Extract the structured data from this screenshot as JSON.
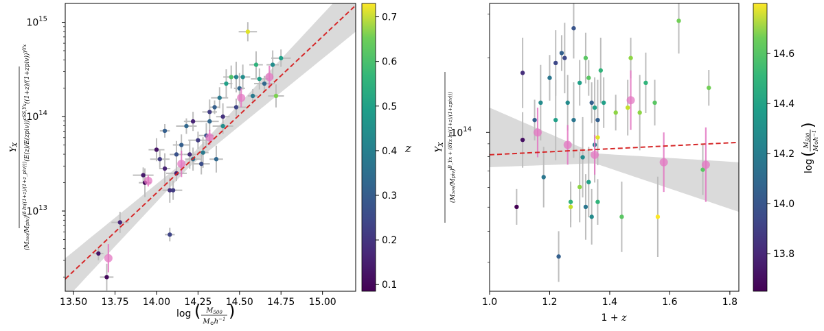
{
  "chart_data": [
    {
      "type": "scatter",
      "title": "",
      "xlabel": "log(M500 / M⊙h⁻¹)",
      "ylabel": "Y_X / [(M500/Mpiv)^(δYx ln((1+z)/(1+zpiv))) (E(z)/E(zpiv))^(cSS,Yx) ((1+z)/(1+zpiv))^(γYx)]",
      "xlim": [
        13.45,
        15.2
      ],
      "ylim_log10": [
        12.15,
        15.2
      ],
      "x_ticks": [
        "13.50",
        "13.75",
        "14.00",
        "14.25",
        "14.50",
        "14.75",
        "15.00"
      ],
      "y_ticks": [
        "10^13",
        "10^14",
        "10^15"
      ],
      "colorbar": {
        "label": "z",
        "range": [
          0.085,
          0.73
        ],
        "ticks": [
          "0.1",
          "0.2",
          "0.3",
          "0.4",
          "0.5",
          "0.6",
          "0.7"
        ]
      },
      "fit_line": {
        "x": [
          13.45,
          15.2
        ],
        "log10y": [
          12.28,
          15.18
        ]
      },
      "band_halfwidth_log10": {
        "x": [
          13.45,
          14.2,
          15.2
        ],
        "halfwidth": [
          0.22,
          0.05,
          0.28
        ]
      },
      "binned_points": [
        {
          "x": 13.71,
          "log10y": 12.5,
          "err": 0.15
        },
        {
          "x": 13.95,
          "log10y": 13.32,
          "err": 0.06
        },
        {
          "x": 14.15,
          "log10y": 13.5,
          "err": 0.14
        },
        {
          "x": 14.32,
          "log10y": 13.78,
          "err": 0.08
        },
        {
          "x": 14.51,
          "log10y": 14.2,
          "err": 0.1
        },
        {
          "x": 14.68,
          "log10y": 14.42,
          "err": 0.12
        }
      ],
      "points": [
        {
          "x": 13.65,
          "log10y": 12.55,
          "z": 0.12
        },
        {
          "x": 13.7,
          "log10y": 12.3,
          "z": 0.1
        },
        {
          "x": 13.78,
          "log10y": 12.88,
          "z": 0.15
        },
        {
          "x": 13.92,
          "log10y": 13.38,
          "z": 0.13
        },
        {
          "x": 13.93,
          "log10y": 13.3,
          "z": 0.1
        },
        {
          "x": 14.0,
          "log10y": 13.65,
          "z": 0.12
        },
        {
          "x": 14.02,
          "log10y": 13.55,
          "z": 0.2
        },
        {
          "x": 14.05,
          "log10y": 13.45,
          "z": 0.15
        },
        {
          "x": 14.08,
          "log10y": 13.22,
          "z": 0.18
        },
        {
          "x": 14.1,
          "log10y": 13.22,
          "z": 0.2
        },
        {
          "x": 14.08,
          "log10y": 12.75,
          "z": 0.22
        },
        {
          "x": 14.12,
          "log10y": 13.6,
          "z": 0.25
        },
        {
          "x": 14.15,
          "log10y": 13.7,
          "z": 0.28
        },
        {
          "x": 14.18,
          "log10y": 13.9,
          "z": 0.3
        },
        {
          "x": 14.2,
          "log10y": 13.6,
          "z": 0.17
        },
        {
          "x": 14.22,
          "log10y": 13.55,
          "z": 0.32
        },
        {
          "x": 14.25,
          "log10y": 13.75,
          "z": 0.2
        },
        {
          "x": 14.28,
          "log10y": 13.62,
          "z": 0.35
        },
        {
          "x": 14.3,
          "log10y": 13.8,
          "z": 0.25
        },
        {
          "x": 14.32,
          "log10y": 13.95,
          "z": 0.3
        },
        {
          "x": 14.35,
          "log10y": 14.1,
          "z": 0.28
        },
        {
          "x": 14.36,
          "log10y": 13.55,
          "z": 0.3
        },
        {
          "x": 14.38,
          "log10y": 14.2,
          "z": 0.35
        },
        {
          "x": 14.4,
          "log10y": 13.9,
          "z": 0.4
        },
        {
          "x": 14.42,
          "log10y": 14.35,
          "z": 0.45
        },
        {
          "x": 14.45,
          "log10y": 14.42,
          "z": 0.55
        },
        {
          "x": 14.48,
          "log10y": 14.1,
          "z": 0.22
        },
        {
          "x": 14.5,
          "log10y": 14.3,
          "z": 0.3
        },
        {
          "x": 14.52,
          "log10y": 14.42,
          "z": 0.4
        },
        {
          "x": 14.55,
          "log10y": 14.9,
          "z": 0.7
        },
        {
          "x": 14.58,
          "log10y": 14.22,
          "z": 0.35
        },
        {
          "x": 14.6,
          "log10y": 14.55,
          "z": 0.5
        },
        {
          "x": 14.62,
          "log10y": 14.4,
          "z": 0.45
        },
        {
          "x": 14.65,
          "log10y": 14.35,
          "z": 0.3
        },
        {
          "x": 14.7,
          "log10y": 14.55,
          "z": 0.4
        },
        {
          "x": 14.72,
          "log10y": 14.22,
          "z": 0.6
        },
        {
          "x": 14.75,
          "log10y": 14.62,
          "z": 0.45
        },
        {
          "x": 14.48,
          "log10y": 14.42,
          "z": 0.38
        },
        {
          "x": 14.32,
          "log10y": 14.05,
          "z": 0.2
        },
        {
          "x": 14.22,
          "log10y": 13.95,
          "z": 0.15
        },
        {
          "x": 14.05,
          "log10y": 13.85,
          "z": 0.28
        },
        {
          "x": 14.4,
          "log10y": 14.0,
          "z": 0.18
        },
        {
          "x": 14.27,
          "log10y": 13.5,
          "z": 0.24
        },
        {
          "x": 14.12,
          "log10y": 13.4,
          "z": 0.14
        }
      ]
    },
    {
      "type": "scatter",
      "title": "",
      "xlabel": "1 + z",
      "ylabel": "Y_X / [(M500/Mpiv)^(B_Yx + δYx ln((1+z)/(1+zpiv)))]",
      "xlim": [
        1.0,
        1.83
      ],
      "ylim_log10": [
        13.36,
        14.52
      ],
      "x_ticks": [
        "1.0",
        "1.2",
        "1.4",
        "1.6",
        "1.8"
      ],
      "y_ticks": [
        "10^14"
      ],
      "colorbar": {
        "label": "log(M500 / M⊙h⁻¹)",
        "range": [
          13.65,
          14.8
        ],
        "ticks": [
          "13.8",
          "14.0",
          "14.2",
          "14.4",
          "14.6"
        ]
      },
      "fit_line": {
        "x": [
          1.0,
          1.83
        ],
        "log10y": [
          13.91,
          13.96
        ]
      },
      "band_halfwidth_log10": {
        "x": [
          1.0,
          1.35,
          1.83
        ],
        "halfwidth": [
          0.12,
          0.02,
          0.1
        ]
      },
      "band_center_log10": {
        "x": [
          1.0,
          1.83
        ],
        "log10y": [
          13.98,
          13.78
        ]
      },
      "binned_points": [
        {
          "x": 1.16,
          "log10y": 14.0,
          "err": 0.1
        },
        {
          "x": 1.26,
          "log10y": 13.95,
          "err": 0.08
        },
        {
          "x": 1.35,
          "log10y": 13.91,
          "err": 0.08
        },
        {
          "x": 1.47,
          "log10y": 14.13,
          "err": 0.12
        },
        {
          "x": 1.58,
          "log10y": 13.88,
          "err": 0.12
        },
        {
          "x": 1.72,
          "log10y": 13.87,
          "err": 0.15
        }
      ],
      "points": [
        {
          "x": 1.09,
          "log10y": 13.7,
          "m": 13.65
        },
        {
          "x": 1.11,
          "log10y": 14.24,
          "m": 13.8
        },
        {
          "x": 1.11,
          "log10y": 13.97,
          "m": 13.7
        },
        {
          "x": 1.15,
          "log10y": 14.05,
          "m": 14.0
        },
        {
          "x": 1.17,
          "log10y": 14.12,
          "m": 14.2
        },
        {
          "x": 1.18,
          "log10y": 13.82,
          "m": 14.1
        },
        {
          "x": 1.2,
          "log10y": 14.22,
          "m": 14.1
        },
        {
          "x": 1.22,
          "log10y": 14.05,
          "m": 14.3
        },
        {
          "x": 1.22,
          "log10y": 14.28,
          "m": 13.9
        },
        {
          "x": 1.23,
          "log10y": 13.5,
          "m": 14.0
        },
        {
          "x": 1.24,
          "log10y": 14.32,
          "m": 14.0
        },
        {
          "x": 1.25,
          "log10y": 14.3,
          "m": 13.9
        },
        {
          "x": 1.26,
          "log10y": 14.12,
          "m": 14.2
        },
        {
          "x": 1.27,
          "log10y": 13.72,
          "m": 14.4
        },
        {
          "x": 1.28,
          "log10y": 14.05,
          "m": 14.1
        },
        {
          "x": 1.28,
          "log10y": 14.42,
          "m": 13.95
        },
        {
          "x": 1.3,
          "log10y": 14.2,
          "m": 14.3
        },
        {
          "x": 1.31,
          "log10y": 13.9,
          "m": 14.2
        },
        {
          "x": 1.32,
          "log10y": 13.7,
          "m": 14.1
        },
        {
          "x": 1.32,
          "log10y": 14.3,
          "m": 14.5
        },
        {
          "x": 1.33,
          "log10y": 14.22,
          "m": 14.5
        },
        {
          "x": 1.33,
          "log10y": 13.8,
          "m": 14.3
        },
        {
          "x": 1.34,
          "log10y": 13.66,
          "m": 14.2
        },
        {
          "x": 1.34,
          "log10y": 14.12,
          "m": 14.0
        },
        {
          "x": 1.35,
          "log10y": 13.95,
          "m": 14.1
        },
        {
          "x": 1.35,
          "log10y": 14.1,
          "m": 14.3
        },
        {
          "x": 1.36,
          "log10y": 13.72,
          "m": 14.4
        },
        {
          "x": 1.36,
          "log10y": 14.05,
          "m": 14.0
        },
        {
          "x": 1.37,
          "log10y": 14.25,
          "m": 14.4
        },
        {
          "x": 1.38,
          "log10y": 14.12,
          "m": 14.3
        },
        {
          "x": 1.42,
          "log10y": 14.08,
          "m": 14.6
        },
        {
          "x": 1.44,
          "log10y": 13.66,
          "m": 14.5
        },
        {
          "x": 1.46,
          "log10y": 14.1,
          "m": 14.7
        },
        {
          "x": 1.47,
          "log10y": 14.3,
          "m": 14.6
        },
        {
          "x": 1.5,
          "log10y": 14.08,
          "m": 14.6
        },
        {
          "x": 1.52,
          "log10y": 14.2,
          "m": 14.4
        },
        {
          "x": 1.55,
          "log10y": 14.12,
          "m": 14.5
        },
        {
          "x": 1.56,
          "log10y": 13.66,
          "m": 14.8
        },
        {
          "x": 1.63,
          "log10y": 14.45,
          "m": 14.55
        },
        {
          "x": 1.71,
          "log10y": 13.85,
          "m": 14.5
        },
        {
          "x": 1.73,
          "log10y": 14.18,
          "m": 14.55
        },
        {
          "x": 1.3,
          "log10y": 13.78,
          "m": 14.6
        },
        {
          "x": 1.36,
          "log10y": 13.98,
          "m": 14.75
        },
        {
          "x": 1.27,
          "log10y": 13.7,
          "m": 14.7
        }
      ]
    }
  ]
}
